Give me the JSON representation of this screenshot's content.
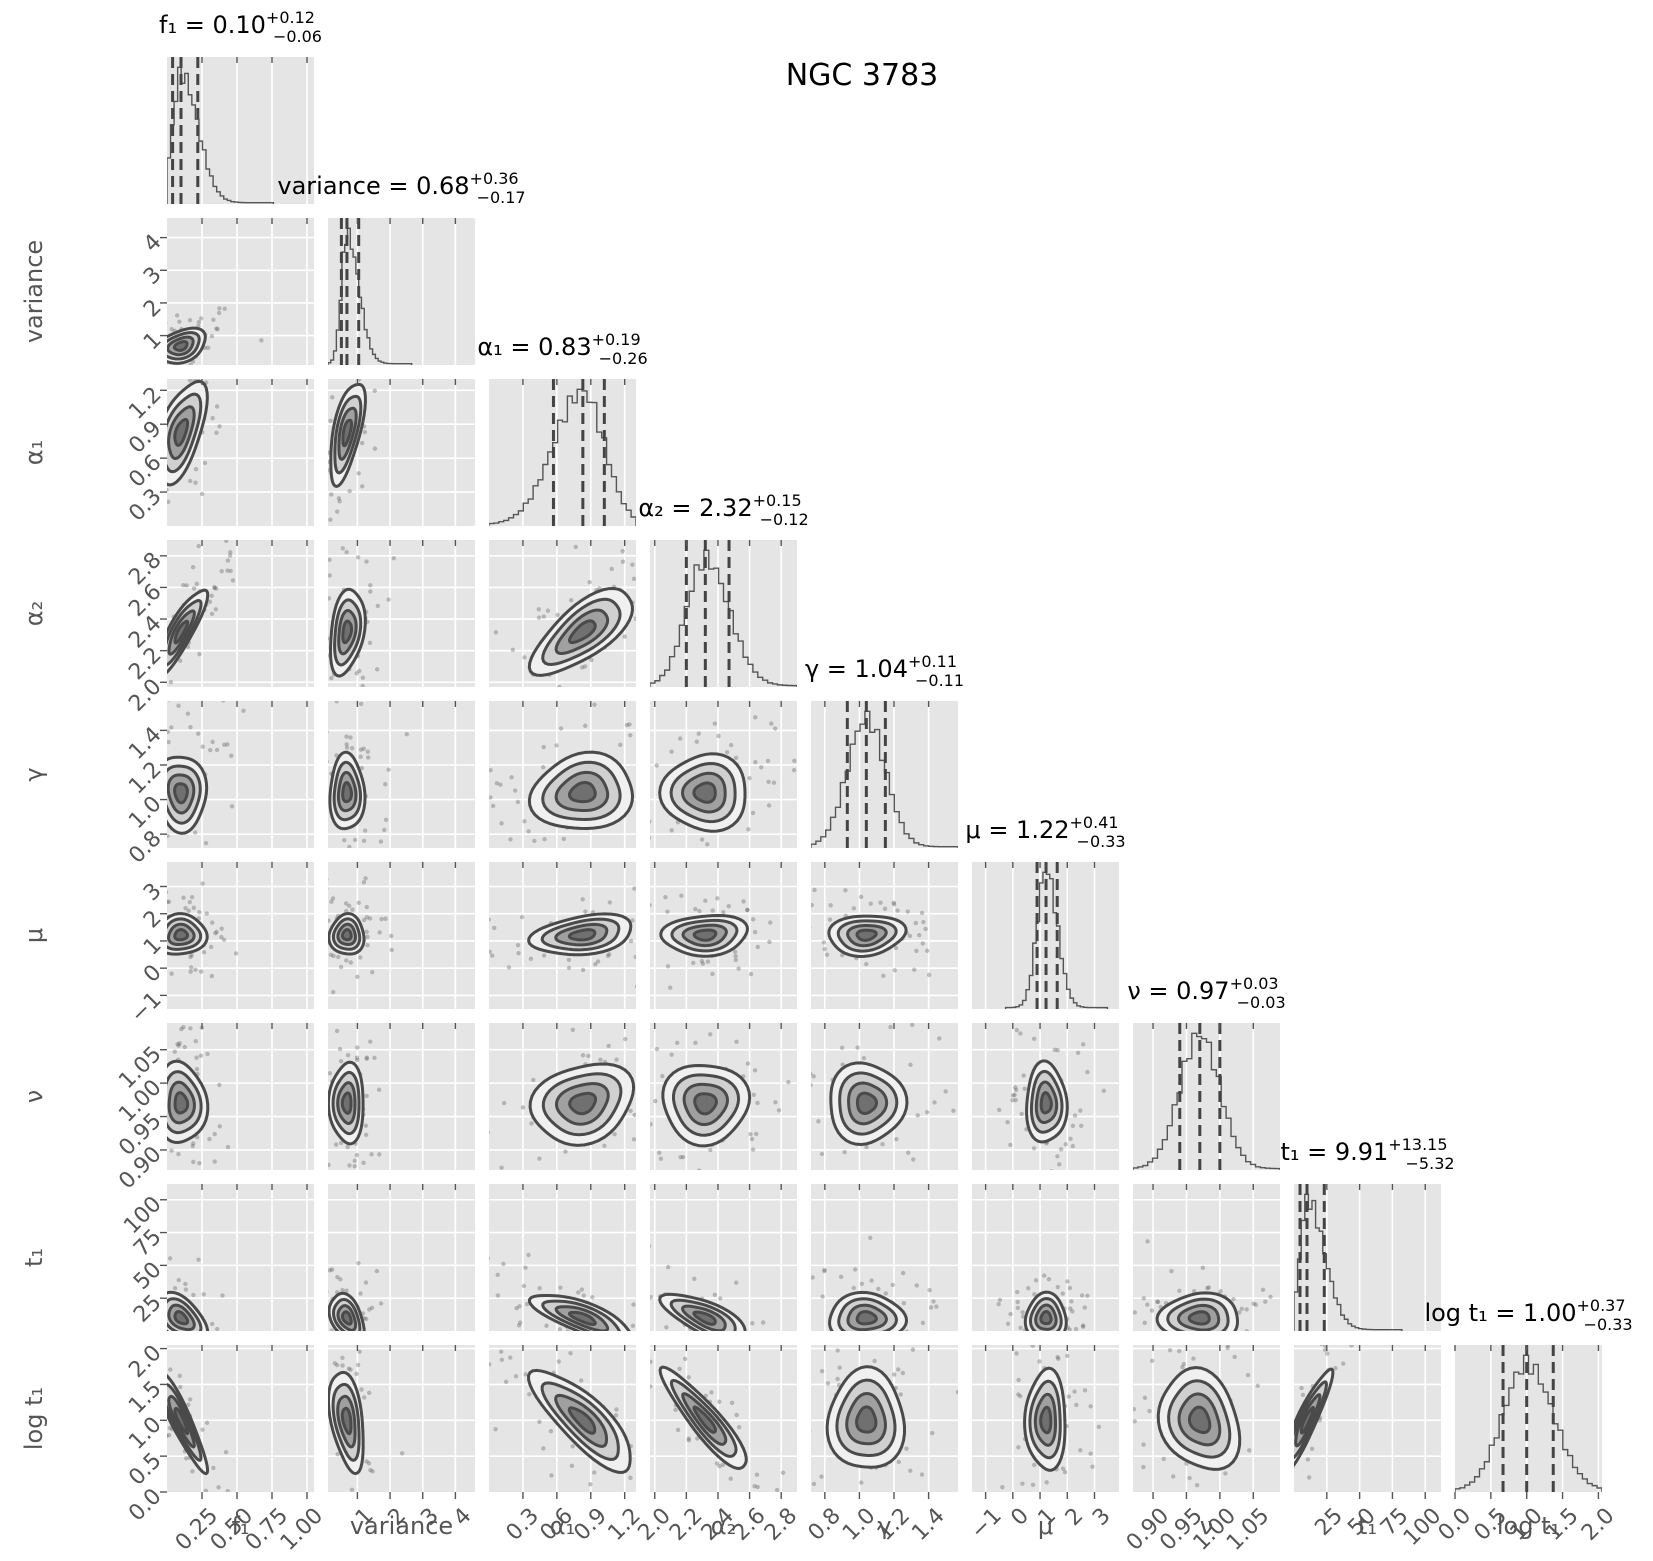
{
  "figure_title": "NGC 3783",
  "chart_data": {
    "type": "corner",
    "title": "NGC 3783",
    "parameters": [
      {
        "name": "f₁",
        "label": "f₁",
        "median": "0.10",
        "plus": "+0.12",
        "minus": "−0.06",
        "q16": 0.04,
        "q50": 0.1,
        "q84": 0.22,
        "range": [
          0,
          1.05
        ],
        "ticks": [
          0.25,
          0.5,
          0.75,
          1.0
        ],
        "tick_labels": [
          "0.25",
          "0.50",
          "0.75",
          "1.00"
        ]
      },
      {
        "name": "variance",
        "label": "variance",
        "median": "0.68",
        "plus": "+0.36",
        "minus": "−0.17",
        "q16": 0.51,
        "q50": 0.68,
        "q84": 1.04,
        "range": [
          0.1,
          4.6
        ],
        "ticks": [
          1,
          2,
          3,
          4
        ],
        "tick_labels": [
          "1",
          "2",
          "3",
          "4"
        ]
      },
      {
        "name": "α₁",
        "label": "α₁",
        "median": "0.83",
        "plus": "+0.19",
        "minus": "−0.26",
        "q16": 0.57,
        "q50": 0.83,
        "q84": 1.02,
        "range": [
          0.0,
          1.3
        ],
        "ticks": [
          0.3,
          0.6,
          0.9,
          1.2
        ],
        "tick_labels": [
          "0.3",
          "0.6",
          "0.9",
          "1.2"
        ]
      },
      {
        "name": "α₂",
        "label": "α₂",
        "median": "2.32",
        "plus": "+0.15",
        "minus": "−0.12",
        "q16": 2.2,
        "q50": 2.32,
        "q84": 2.47,
        "range": [
          1.97,
          2.9
        ],
        "ticks": [
          2.0,
          2.2,
          2.4,
          2.6,
          2.8
        ],
        "tick_labels": [
          "2.0",
          "2.2",
          "2.4",
          "2.6",
          "2.8"
        ]
      },
      {
        "name": "γ",
        "label": "γ",
        "median": "1.04",
        "plus": "+0.11",
        "minus": "−0.11",
        "q16": 0.93,
        "q50": 1.04,
        "q84": 1.15,
        "range": [
          0.72,
          1.57
        ],
        "ticks": [
          0.8,
          1.0,
          1.2,
          1.4
        ],
        "tick_labels": [
          "0.8",
          "1.0",
          "1.2",
          "1.4"
        ]
      },
      {
        "name": "μ",
        "label": "μ",
        "median": "1.22",
        "plus": "+0.41",
        "minus": "−0.33",
        "q16": 0.89,
        "q50": 1.22,
        "q84": 1.63,
        "range": [
          -1.5,
          3.9
        ],
        "ticks": [
          -1,
          0,
          1,
          2,
          3
        ],
        "tick_labels": [
          "−1",
          "0",
          "1",
          "2",
          "3"
        ]
      },
      {
        "name": "ν",
        "label": "ν",
        "median": "0.97",
        "plus": "+0.03",
        "minus": "−0.03",
        "q16": 0.94,
        "q50": 0.97,
        "q84": 1.0,
        "range": [
          0.87,
          1.09
        ],
        "ticks": [
          0.9,
          0.95,
          1.0,
          1.05
        ],
        "tick_labels": [
          "0.90",
          "0.95",
          "1.00",
          "1.05"
        ]
      },
      {
        "name": "t₁",
        "label": "t₁",
        "median": "9.91",
        "plus": "+13.15",
        "minus": "−5.32",
        "q16": 4.59,
        "q50": 9.91,
        "q84": 23.06,
        "range": [
          0,
          112
        ],
        "ticks": [
          25,
          50,
          75,
          100
        ],
        "tick_labels": [
          "25",
          "50",
          "75",
          "100"
        ]
      },
      {
        "name": "log t₁",
        "label": "log t₁",
        "median": "1.00",
        "plus": "+0.37",
        "minus": "−0.33",
        "q16": 0.67,
        "q50": 1.0,
        "q84": 1.37,
        "range": [
          0.0,
          2.05
        ],
        "ticks": [
          0.0,
          0.5,
          1.0,
          1.5,
          2.0
        ],
        "tick_labels": [
          "0.0",
          "0.5",
          "1.0",
          "1.5",
          "2.0"
        ]
      }
    ],
    "correlations": [
      [
        1,
        0.35,
        0.55,
        0.85,
        -0.05,
        0.05,
        -0.05,
        -0.45,
        -0.9
      ],
      [
        0.35,
        1,
        0.6,
        0.3,
        0.0,
        0.0,
        0.0,
        -0.4,
        -0.4
      ],
      [
        0.55,
        0.6,
        1,
        0.7,
        0.1,
        0.3,
        0.2,
        -0.75,
        -0.8
      ],
      [
        0.85,
        0.3,
        0.7,
        1,
        0.0,
        0.1,
        0.0,
        -0.7,
        -0.9
      ],
      [
        -0.05,
        0.0,
        0.1,
        0.0,
        1,
        0.1,
        0.0,
        0.0,
        0.0
      ],
      [
        0.05,
        0.0,
        0.3,
        0.1,
        0.1,
        1,
        0.0,
        0.0,
        0.0
      ],
      [
        -0.05,
        0.0,
        0.2,
        0.0,
        0.0,
        0.0,
        1,
        0.0,
        -0.2
      ],
      [
        -0.45,
        -0.4,
        -0.75,
        -0.7,
        0.0,
        0.0,
        0.0,
        1,
        0.9
      ],
      [
        -0.9,
        -0.4,
        -0.8,
        -0.9,
        0.0,
        0.0,
        -0.2,
        0.9,
        1
      ]
    ],
    "grid": true,
    "colors": {
      "panel": "#e5e5e5",
      "grid": "#ffffff",
      "line": "#4a4a4a",
      "text": "#555555"
    }
  }
}
